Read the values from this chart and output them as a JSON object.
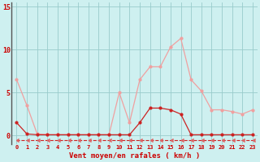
{
  "x": [
    0,
    1,
    2,
    3,
    4,
    5,
    6,
    7,
    8,
    9,
    10,
    11,
    12,
    13,
    14,
    15,
    16,
    17,
    18,
    19,
    20,
    21,
    22,
    23
  ],
  "y_gusts": [
    6.5,
    3.5,
    0.2,
    0.1,
    0.1,
    0.1,
    0.1,
    0.1,
    0.1,
    0.1,
    5.0,
    1.5,
    6.5,
    8.0,
    8.0,
    10.3,
    11.3,
    6.5,
    5.2,
    3.0,
    3.0,
    2.8,
    2.5,
    3.0
  ],
  "y_mean": [
    1.5,
    0.2,
    0.1,
    0.1,
    0.1,
    0.1,
    0.1,
    0.1,
    0.1,
    0.1,
    0.1,
    0.1,
    1.5,
    3.2,
    3.2,
    3.0,
    2.5,
    0.1,
    0.1,
    0.1,
    0.1,
    0.1,
    0.1,
    0.1
  ],
  "y_bottom": [
    -0.55,
    -0.55,
    -0.55,
    -0.55,
    -0.55,
    -0.55,
    -0.55,
    -0.55,
    -0.55,
    -0.55,
    -0.55,
    -0.55,
    -0.55,
    -0.55,
    -0.55,
    -0.55,
    -0.55,
    -0.55,
    -0.55,
    -0.55,
    -0.55,
    -0.55,
    -0.55,
    -0.55
  ],
  "color_gusts": "#f0a0a0",
  "color_mean": "#cc2222",
  "color_bottom_line": "#cc2222",
  "color_bottom_marker": "#dd6666",
  "bg_color": "#cef0f0",
  "grid_color": "#99cccc",
  "xlabel": "Vent moyen/en rafales ( km/h )",
  "xlim": [
    -0.5,
    23.5
  ],
  "ylim": [
    -1.0,
    15.5
  ],
  "yticks": [
    0,
    5,
    10,
    15
  ],
  "xtick_labels": [
    "0",
    "1",
    "2",
    "3",
    "4",
    "5",
    "6",
    "7",
    "8",
    "9",
    "10",
    "11",
    "12",
    "13",
    "14",
    "15",
    "16",
    "17",
    "18",
    "19",
    "20",
    "21",
    "22",
    "23"
  ],
  "tick_color": "#cc0000",
  "label_color": "#cc0000",
  "spine_color": "#555555"
}
